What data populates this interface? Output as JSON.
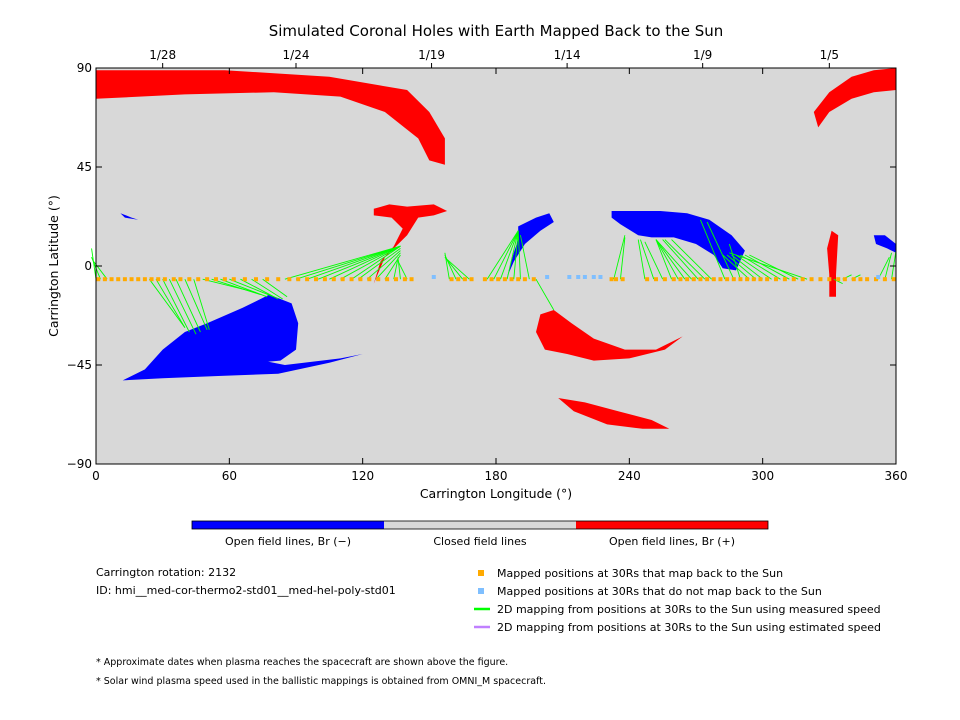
{
  "chart_data": {
    "type": "scatter",
    "title": "Simulated Coronal Holes with Earth Mapped Back to the Sun",
    "xlabel": "Carrington Longitude (°)",
    "ylabel": "Carrington Latitude (°)",
    "xlim": [
      0,
      360
    ],
    "ylim": [
      -90,
      90
    ],
    "xticks": [
      0,
      60,
      120,
      180,
      240,
      300,
      360
    ],
    "yticks": [
      -90,
      -45,
      0,
      45,
      90
    ],
    "top_axis_dates": [
      {
        "label": "1/28",
        "lon": 30
      },
      {
        "label": "1/24",
        "lon": 90
      },
      {
        "label": "1/19",
        "lon": 151
      },
      {
        "label": "1/14",
        "lon": 212
      },
      {
        "label": "1/9",
        "lon": 273
      },
      {
        "label": "1/5",
        "lon": 330
      }
    ],
    "colors": {
      "background": "#d8d8d8",
      "open_negative": "#0000ff",
      "open_positive": "#ff0000",
      "mapped": "#ffaa00",
      "not_mapped": "#7fbfff",
      "measured_line": "#00ff00",
      "estimated_line": "#c080ff"
    },
    "colorbar": [
      {
        "label": "Open field lines, Br (−)",
        "color": "#0000ff"
      },
      {
        "label": "Closed field lines",
        "color": "#d8d8d8"
      },
      {
        "label": "Open field lines, Br (+)",
        "color": "#ff0000"
      }
    ],
    "series": [
      {
        "name": "Mapped positions at 30Rs that map back to the Sun",
        "lat": -6,
        "lon": [
          1,
          4,
          7,
          10,
          13,
          16,
          19,
          22,
          25,
          28,
          31,
          35,
          38,
          42,
          46,
          50,
          54,
          58,
          62,
          67,
          72,
          77,
          82,
          87,
          91,
          95,
          99,
          103,
          107,
          111,
          115,
          119,
          123,
          127,
          131,
          135,
          139,
          142,
          160,
          163,
          166,
          169,
          175,
          178,
          181,
          184,
          187,
          190,
          193,
          197,
          232,
          234,
          237,
          248,
          252,
          256,
          260,
          263,
          266,
          269,
          272,
          275,
          278,
          281,
          284,
          287,
          290,
          293,
          296,
          299,
          302,
          306,
          310,
          314,
          318,
          322,
          326,
          330,
          334,
          337,
          341,
          344,
          347,
          351,
          355,
          359
        ],
        "color": "#ffaa00"
      },
      {
        "name": "Mapped positions at 30Rs that do not map back to the Sun",
        "lat": -5,
        "lon": [
          152,
          203,
          213,
          217,
          220,
          224,
          227,
          352
        ],
        "color": "#7fbfff"
      }
    ],
    "mapping_lines": {
      "name": "2D mapping from positions at 30Rs to the Sun using measured speed",
      "segments": [
        [
          0,
          -6,
          -2,
          8
        ],
        [
          2,
          -6,
          -2,
          4
        ],
        [
          5,
          -6,
          -1,
          2
        ],
        [
          24,
          -6,
          40,
          -28
        ],
        [
          27,
          -6,
          40,
          -28
        ],
        [
          30,
          -6,
          42,
          -30
        ],
        [
          33,
          -6,
          45,
          -31
        ],
        [
          36,
          -6,
          47,
          -30
        ],
        [
          40,
          -6,
          50,
          -29
        ],
        [
          44,
          -6,
          51,
          -29
        ],
        [
          48,
          -6,
          72,
          -12
        ],
        [
          52,
          -6,
          74,
          -13
        ],
        [
          56,
          -6,
          77,
          -14
        ],
        [
          60,
          -6,
          80,
          -14
        ],
        [
          65,
          -6,
          82,
          -15
        ],
        [
          70,
          -6,
          84,
          -15
        ],
        [
          75,
          -6,
          86,
          -14
        ],
        [
          85,
          -6,
          137,
          9
        ],
        [
          90,
          -6,
          137,
          9
        ],
        [
          95,
          -6,
          137,
          9
        ],
        [
          100,
          -6,
          137,
          9
        ],
        [
          105,
          -6,
          137,
          9
        ],
        [
          110,
          -6,
          137,
          9
        ],
        [
          115,
          -6,
          137,
          9
        ],
        [
          118,
          -6,
          137,
          8
        ],
        [
          122,
          -6,
          137,
          7
        ],
        [
          126,
          -6,
          137,
          6
        ],
        [
          130,
          -6,
          137,
          5
        ],
        [
          134,
          -6,
          136,
          4
        ],
        [
          137,
          -6,
          136,
          3
        ],
        [
          140,
          -6,
          136,
          2
        ],
        [
          159,
          -6,
          157,
          6
        ],
        [
          162,
          -6,
          157,
          5
        ],
        [
          165,
          -6,
          157,
          4
        ],
        [
          168,
          -6,
          158,
          3
        ],
        [
          176,
          -6,
          190,
          16
        ],
        [
          179,
          -6,
          190,
          16
        ],
        [
          182,
          -6,
          190,
          16
        ],
        [
          185,
          -6,
          190,
          16
        ],
        [
          188,
          -6,
          190,
          16
        ],
        [
          191,
          -6,
          190,
          16
        ],
        [
          195,
          -6,
          191,
          14
        ],
        [
          198,
          -6,
          206,
          -20
        ],
        [
          233,
          -6,
          238,
          14
        ],
        [
          236,
          -6,
          238,
          13
        ],
        [
          247,
          -6,
          244,
          12
        ],
        [
          251,
          -6,
          245,
          12
        ],
        [
          255,
          -6,
          247,
          11
        ],
        [
          259,
          -6,
          252,
          12
        ],
        [
          262,
          -6,
          252,
          12
        ],
        [
          265,
          -6,
          252,
          12
        ],
        [
          268,
          -6,
          252,
          12
        ],
        [
          271,
          -6,
          255,
          12
        ],
        [
          274,
          -6,
          256,
          12
        ],
        [
          277,
          -6,
          259,
          12
        ],
        [
          283,
          -6,
          272,
          21
        ],
        [
          287,
          -6,
          275,
          20
        ],
        [
          290,
          -6,
          285,
          10
        ],
        [
          294,
          -6,
          282,
          5
        ],
        [
          297,
          -6,
          284,
          5
        ],
        [
          300,
          -6,
          286,
          5
        ],
        [
          304,
          -6,
          288,
          5
        ],
        [
          308,
          -6,
          290,
          5
        ],
        [
          312,
          -6,
          292,
          5
        ],
        [
          316,
          -6,
          294,
          5
        ],
        [
          320,
          -6,
          285,
          6
        ],
        [
          332,
          -6,
          336,
          -8
        ],
        [
          336,
          -6,
          340,
          -4
        ],
        [
          340,
          -6,
          344,
          -4
        ],
        [
          352,
          -6,
          357,
          4
        ],
        [
          355,
          -6,
          358,
          6
        ],
        [
          358,
          -6,
          360,
          7
        ]
      ]
    },
    "coronal_holes": [
      {
        "polarity": "+",
        "points": [
          [
            0,
            89
          ],
          [
            58,
            89
          ],
          [
            105,
            86
          ],
          [
            140,
            80
          ],
          [
            150,
            70
          ],
          [
            157,
            58
          ],
          [
            157,
            46
          ],
          [
            150,
            48
          ],
          [
            145,
            58
          ],
          [
            130,
            70
          ],
          [
            110,
            77
          ],
          [
            80,
            79
          ],
          [
            40,
            78
          ],
          [
            0,
            76
          ]
        ]
      },
      {
        "polarity": "+",
        "points": [
          [
            325,
            63
          ],
          [
            330,
            70
          ],
          [
            340,
            76
          ],
          [
            350,
            79
          ],
          [
            360,
            80
          ],
          [
            360,
            90
          ],
          [
            350,
            89
          ],
          [
            340,
            86
          ],
          [
            330,
            79
          ],
          [
            323,
            70
          ]
        ]
      },
      {
        "polarity": "+",
        "points": [
          [
            125,
            26
          ],
          [
            132,
            28
          ],
          [
            140,
            27
          ],
          [
            152,
            28
          ],
          [
            158,
            25
          ],
          [
            152,
            23
          ],
          [
            145,
            22
          ],
          [
            140,
            14
          ],
          [
            135,
            9
          ],
          [
            130,
            4
          ],
          [
            125,
            -8
          ],
          [
            128,
            2
          ],
          [
            134,
            9
          ],
          [
            138,
            17
          ],
          [
            133,
            22
          ],
          [
            125,
            23
          ]
        ]
      },
      {
        "polarity": "+",
        "points": [
          [
            200,
            -22
          ],
          [
            206,
            -20
          ],
          [
            214,
            -26
          ],
          [
            224,
            -33
          ],
          [
            238,
            -38
          ],
          [
            252,
            -38
          ],
          [
            264,
            -32
          ],
          [
            256,
            -38
          ],
          [
            240,
            -42
          ],
          [
            224,
            -43
          ],
          [
            212,
            -40
          ],
          [
            202,
            -38
          ],
          [
            198,
            -30
          ]
        ]
      },
      {
        "polarity": "+",
        "points": [
          [
            208,
            -60
          ],
          [
            220,
            -62
          ],
          [
            235,
            -66
          ],
          [
            250,
            -70
          ],
          [
            258,
            -74
          ],
          [
            246,
            -74
          ],
          [
            230,
            -72
          ],
          [
            215,
            -66
          ]
        ]
      },
      {
        "polarity": "+",
        "points": [
          [
            331,
            16
          ],
          [
            334,
            14
          ],
          [
            333,
            -4
          ],
          [
            333,
            -14
          ],
          [
            330,
            -14
          ],
          [
            330,
            -4
          ],
          [
            329,
            8
          ]
        ]
      },
      {
        "polarity": "-",
        "points": [
          [
            12,
            -52
          ],
          [
            22,
            -47
          ],
          [
            30,
            -38
          ],
          [
            40,
            -30
          ],
          [
            50,
            -26
          ],
          [
            66,
            -19
          ],
          [
            78,
            -13
          ],
          [
            88,
            -17
          ],
          [
            91,
            -26
          ],
          [
            90,
            -38
          ],
          [
            83,
            -43
          ],
          [
            72,
            -44
          ],
          [
            60,
            -40
          ],
          [
            54,
            -36
          ],
          [
            50,
            -33
          ],
          [
            58,
            -38
          ],
          [
            70,
            -42
          ],
          [
            85,
            -45
          ],
          [
            110,
            -42
          ],
          [
            120,
            -40
          ],
          [
            105,
            -44
          ],
          [
            82,
            -49
          ],
          [
            55,
            -50
          ],
          [
            30,
            -51
          ]
        ]
      },
      {
        "polarity": "-",
        "points": [
          [
            190,
            18
          ],
          [
            198,
            22
          ],
          [
            204,
            24
          ],
          [
            206,
            20
          ],
          [
            200,
            16
          ],
          [
            193,
            10
          ],
          [
            188,
            2
          ],
          [
            185,
            -5
          ],
          [
            188,
            6
          ],
          [
            190,
            12
          ]
        ]
      },
      {
        "polarity": "-",
        "points": [
          [
            232,
            25
          ],
          [
            240,
            25
          ],
          [
            254,
            25
          ],
          [
            266,
            24
          ],
          [
            276,
            21
          ],
          [
            286,
            14
          ],
          [
            292,
            7
          ],
          [
            288,
            -2
          ],
          [
            282,
            -1
          ],
          [
            278,
            5
          ],
          [
            270,
            10
          ],
          [
            260,
            13
          ],
          [
            250,
            13
          ],
          [
            244,
            14
          ],
          [
            236,
            19
          ],
          [
            232,
            22
          ]
        ]
      },
      {
        "polarity": "-",
        "points": [
          [
            350,
            14
          ],
          [
            355,
            14
          ],
          [
            360,
            10
          ],
          [
            360,
            6
          ],
          [
            356,
            8
          ],
          [
            351,
            10
          ]
        ]
      },
      {
        "polarity": "-",
        "points": [
          [
            11,
            24
          ],
          [
            16,
            22
          ],
          [
            19,
            21
          ],
          [
            13,
            22
          ]
        ]
      }
    ]
  },
  "annotations": {
    "rotation": "Carrington rotation: 2132",
    "id": "ID: hmi__med-cor-thermo2-std01__med-hel-poly-std01",
    "note1": "* Approximate dates when plasma reaches the spacecraft are shown above the figure.",
    "note2": "* Solar wind plasma speed used in the ballistic mappings is obtained from OMNI_M spacecraft."
  },
  "legend": [
    {
      "label": "Mapped positions at 30Rs that map back to the Sun",
      "type": "square",
      "color": "#ffaa00"
    },
    {
      "label": "Mapped positions at 30Rs that do not map back to the Sun",
      "type": "square",
      "color": "#7fbfff"
    },
    {
      "label": "2D mapping from positions at 30Rs to the Sun using measured speed",
      "type": "line",
      "color": "#00ff00"
    },
    {
      "label": "2D mapping from positions at 30Rs to the Sun using estimated speed",
      "type": "line",
      "color": "#c080ff"
    }
  ]
}
